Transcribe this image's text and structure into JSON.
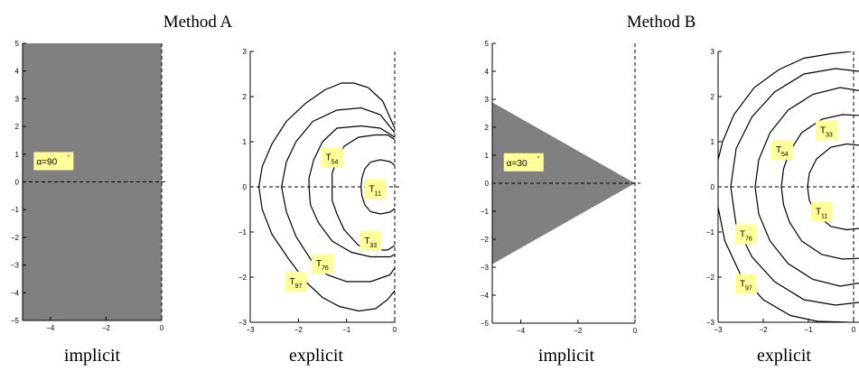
{
  "figure": {
    "method_titles": [
      "Method A",
      "Method B"
    ],
    "panel_xlabels": [
      "implicit",
      "explicit",
      "implicit",
      "explicit"
    ]
  },
  "colors": {
    "region_fill": "#808080",
    "label_box": "#ffff99",
    "curve": "#000000"
  },
  "chart_data": [
    {
      "type": "area",
      "method": "Method A",
      "xlabel": "implicit",
      "xlim": [
        -5,
        0
      ],
      "ylim": [
        -5,
        5
      ],
      "xticks": [
        -4,
        -2,
        0
      ],
      "yticks": [
        -5,
        -4,
        -3,
        -2,
        -1,
        0,
        1,
        2,
        3,
        4,
        5
      ],
      "region": {
        "shape": "left-half-plane",
        "apex_angle_deg": 90,
        "polygon": [
          [
            -5,
            -5
          ],
          [
            0,
            -5
          ],
          [
            0,
            5
          ],
          [
            -5,
            5
          ]
        ]
      },
      "annotations": [
        {
          "text": "α=90",
          "superscript": "°",
          "x": -4.5,
          "y": 0.75
        }
      ],
      "reference_lines": [
        "x=0 (dashed)",
        "y=0 (dashed)"
      ]
    },
    {
      "type": "line",
      "method": "Method A",
      "xlabel": "explicit",
      "xlim": [
        -3,
        0
      ],
      "ylim": [
        -3,
        3
      ],
      "xticks": [
        -3,
        -2,
        -1,
        0
      ],
      "yticks": [
        -3,
        -2,
        -1,
        0,
        1,
        2,
        3
      ],
      "series": [
        {
          "name": "T_11",
          "label_base": "T",
          "label_sub": "11",
          "label_at": [
            -0.4,
            -0.05
          ],
          "points": [
            [
              0.0,
              0.48
            ],
            [
              -0.1,
              0.56
            ],
            [
              -0.3,
              0.6
            ],
            [
              -0.5,
              0.55
            ],
            [
              -0.62,
              0.4
            ],
            [
              -0.68,
              0.2
            ],
            [
              -0.7,
              0.0
            ],
            [
              -0.68,
              -0.2
            ],
            [
              -0.62,
              -0.4
            ],
            [
              -0.5,
              -0.55
            ],
            [
              -0.3,
              -0.6
            ],
            [
              -0.1,
              -0.56
            ],
            [
              0.0,
              -0.48
            ]
          ]
        },
        {
          "name": "T_33",
          "label_base": "T",
          "label_sub": "33",
          "label_at": [
            -0.5,
            -1.2
          ],
          "points": [
            [
              0.0,
              1.05
            ],
            [
              -0.15,
              1.15
            ],
            [
              -0.4,
              1.15
            ],
            [
              -0.75,
              1.1
            ],
            [
              -1.05,
              0.9
            ],
            [
              -1.2,
              0.6
            ],
            [
              -1.3,
              0.3
            ],
            [
              -1.3,
              0.0
            ],
            [
              -1.3,
              -0.3
            ],
            [
              -1.2,
              -0.6
            ],
            [
              -1.05,
              -0.95
            ],
            [
              -0.75,
              -1.3
            ],
            [
              -0.4,
              -1.4
            ],
            [
              -0.15,
              -1.4
            ],
            [
              0.0,
              -1.3
            ]
          ]
        },
        {
          "name": "T_54",
          "label_base": "T",
          "label_sub": "54",
          "label_at": [
            -1.3,
            0.65
          ],
          "points": [
            [
              0.0,
              1.1
            ],
            [
              -0.3,
              1.3
            ],
            [
              -0.7,
              1.35
            ],
            [
              -1.2,
              1.3
            ],
            [
              -1.5,
              1.0
            ],
            [
              -1.68,
              0.6
            ],
            [
              -1.78,
              0.2
            ],
            [
              -1.78,
              0.0
            ],
            [
              -1.75,
              -0.4
            ],
            [
              -1.58,
              -0.8
            ],
            [
              -1.3,
              -1.2
            ],
            [
              -0.9,
              -1.45
            ],
            [
              -0.5,
              -1.55
            ],
            [
              -0.1,
              -1.55
            ],
            [
              0.0,
              -1.5
            ]
          ]
        },
        {
          "name": "T_76",
          "label_base": "T",
          "label_sub": "76",
          "label_at": [
            -1.5,
            -1.7
          ],
          "points": [
            [
              0.0,
              1.2
            ],
            [
              -0.3,
              1.6
            ],
            [
              -0.7,
              1.75
            ],
            [
              -1.2,
              1.7
            ],
            [
              -1.7,
              1.45
            ],
            [
              -2.05,
              1.0
            ],
            [
              -2.25,
              0.55
            ],
            [
              -2.35,
              0.0
            ],
            [
              -2.25,
              -0.55
            ],
            [
              -2.05,
              -1.1
            ],
            [
              -1.75,
              -1.6
            ],
            [
              -1.4,
              -1.95
            ],
            [
              -1.0,
              -2.1
            ],
            [
              -0.5,
              -2.1
            ],
            [
              -0.1,
              -1.95
            ],
            [
              0.0,
              -1.8
            ]
          ]
        },
        {
          "name": "T_97",
          "label_base": "T",
          "label_sub": "97",
          "label_at": [
            -2.05,
            -2.1
          ],
          "points": [
            [
              0.0,
              1.3
            ],
            [
              -0.25,
              1.9
            ],
            [
              -0.55,
              2.2
            ],
            [
              -0.85,
              2.3
            ],
            [
              -1.1,
              2.3
            ],
            [
              -1.45,
              2.15
            ],
            [
              -1.85,
              1.85
            ],
            [
              -2.25,
              1.45
            ],
            [
              -2.55,
              0.95
            ],
            [
              -2.75,
              0.45
            ],
            [
              -2.82,
              0.0
            ],
            [
              -2.75,
              -0.5
            ],
            [
              -2.55,
              -1.05
            ],
            [
              -2.2,
              -1.6
            ],
            [
              -1.85,
              -2.1
            ],
            [
              -1.5,
              -2.45
            ],
            [
              -1.15,
              -2.65
            ],
            [
              -0.75,
              -2.75
            ],
            [
              -0.4,
              -2.7
            ],
            [
              -0.15,
              -2.5
            ],
            [
              0.0,
              -2.3
            ]
          ]
        }
      ],
      "reference_lines": [
        "x=0 (dashed)",
        "y=0 (dashed)"
      ]
    },
    {
      "type": "area",
      "method": "Method B",
      "xlabel": "implicit",
      "xlim": [
        -5,
        0
      ],
      "ylim": [
        -5,
        5
      ],
      "xticks": [
        -4,
        -2,
        0
      ],
      "yticks": [
        -5,
        -4,
        -3,
        -2,
        -1,
        0,
        1,
        2,
        3,
        4,
        5
      ],
      "region": {
        "shape": "wedge",
        "apex_angle_deg": 30,
        "polygon": [
          [
            0,
            0
          ],
          [
            -5,
            2.89
          ],
          [
            -5,
            -2.89
          ]
        ]
      },
      "annotations": [
        {
          "text": "α=30",
          "superscript": "°",
          "x": -4.5,
          "y": 0.75
        }
      ],
      "reference_lines": [
        "x=0 (dashed)",
        "y=0 (dashed)"
      ]
    },
    {
      "type": "line",
      "method": "Method B",
      "xlabel": "explicit",
      "xlim": [
        -3,
        0.2
      ],
      "ylim": [
        -3,
        3
      ],
      "xticks": [
        -3,
        -2,
        -1,
        0
      ],
      "yticks": [
        -3,
        -2,
        -1,
        0,
        1,
        2,
        3
      ],
      "series": [
        {
          "name": "T_11",
          "label_base": "T",
          "label_sub": "11",
          "label_at": [
            -0.7,
            -0.55
          ],
          "points": [
            [
              0.15,
              0.92
            ],
            [
              -0.15,
              0.95
            ],
            [
              -0.5,
              0.88
            ],
            [
              -0.82,
              0.62
            ],
            [
              -0.98,
              0.3
            ],
            [
              -1.02,
              0.0
            ],
            [
              -0.98,
              -0.3
            ],
            [
              -0.82,
              -0.62
            ],
            [
              -0.5,
              -0.88
            ],
            [
              -0.15,
              -0.95
            ],
            [
              0.15,
              -0.92
            ]
          ]
        },
        {
          "name": "T_33",
          "label_base": "T",
          "label_sub": "33",
          "label_at": [
            -0.6,
            1.25
          ],
          "points": [
            [
              0.2,
              1.58
            ],
            [
              -0.25,
              1.6
            ],
            [
              -0.7,
              1.5
            ],
            [
              -1.15,
              1.2
            ],
            [
              -1.42,
              0.78
            ],
            [
              -1.55,
              0.4
            ],
            [
              -1.6,
              0.0
            ],
            [
              -1.55,
              -0.4
            ],
            [
              -1.42,
              -0.78
            ],
            [
              -1.15,
              -1.2
            ],
            [
              -0.7,
              -1.5
            ],
            [
              -0.25,
              -1.6
            ],
            [
              0.2,
              -1.58
            ]
          ]
        },
        {
          "name": "T_54",
          "label_base": "T",
          "label_sub": "54",
          "label_at": [
            -1.58,
            0.82
          ],
          "points": [
            [
              0.2,
              2.12
            ],
            [
              -0.3,
              2.2
            ],
            [
              -0.9,
              2.05
            ],
            [
              -1.45,
              1.7
            ],
            [
              -1.85,
              1.2
            ],
            [
              -2.1,
              0.6
            ],
            [
              -2.18,
              0.0
            ],
            [
              -2.1,
              -0.6
            ],
            [
              -1.85,
              -1.2
            ],
            [
              -1.45,
              -1.7
            ],
            [
              -0.9,
              -2.05
            ],
            [
              -0.3,
              -2.2
            ],
            [
              0.2,
              -2.12
            ]
          ]
        },
        {
          "name": "T_76",
          "label_base": "T",
          "label_sub": "76",
          "label_at": [
            -2.38,
            -1.05
          ],
          "points": [
            [
              0.2,
              2.55
            ],
            [
              -0.4,
              2.62
            ],
            [
              -1.1,
              2.5
            ],
            [
              -1.75,
              2.1
            ],
            [
              -2.25,
              1.55
            ],
            [
              -2.6,
              0.85
            ],
            [
              -2.72,
              0.0
            ],
            [
              -2.6,
              -0.85
            ],
            [
              -2.25,
              -1.55
            ],
            [
              -1.75,
              -2.1
            ],
            [
              -1.1,
              -2.5
            ],
            [
              -0.4,
              -2.62
            ],
            [
              0.2,
              -2.55
            ]
          ]
        },
        {
          "name": "T_97",
          "label_base": "T",
          "label_sub": "97",
          "label_at": [
            -2.38,
            -2.15
          ],
          "points": [
            [
              -0.05,
              3.0
            ],
            [
              -0.5,
              2.95
            ],
            [
              -1.1,
              2.85
            ],
            [
              -1.65,
              2.6
            ],
            [
              -2.2,
              2.2
            ],
            [
              -2.65,
              1.6
            ],
            [
              -2.9,
              1.0
            ],
            [
              -3.0,
              0.6
            ]
          ]
        },
        {
          "name": "",
          "points": [
            [
              -3.0,
              -0.45
            ],
            [
              -2.85,
              -1.2
            ],
            [
              -2.5,
              -1.95
            ],
            [
              -2.0,
              -2.5
            ],
            [
              -1.4,
              -2.85
            ],
            [
              -0.8,
              -2.98
            ],
            [
              -0.1,
              -3.0
            ]
          ]
        }
      ],
      "reference_lines": [
        "x=0 (dashed)",
        "y=0 (dashed)"
      ]
    }
  ]
}
